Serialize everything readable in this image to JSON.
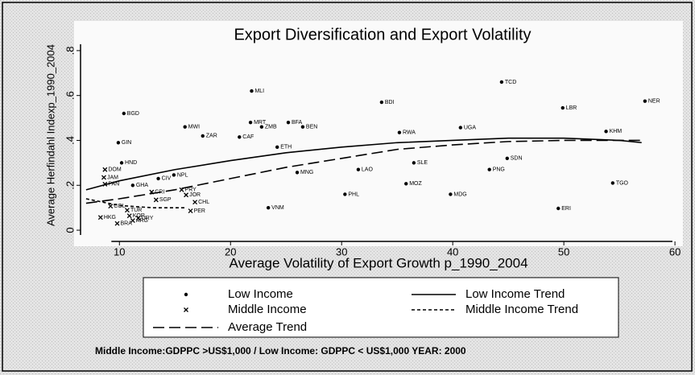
{
  "chart_data": {
    "type": "scatter",
    "title": "Export Diversification and Export Volatility",
    "x_label": "Average Volatility of Export Growth p_1990_2004",
    "y_label": "Average Herfindahl Indexp_1990_2004",
    "note": "Middle Income:GDPPC >US$1,000 / Low Income: GDPPC < US$1,000 YEAR: 2000",
    "xlim": [
      6.5,
      60.5
    ],
    "ylim": [
      -0.05,
      0.9
    ],
    "xticks": [
      10,
      20,
      30,
      40,
      50,
      60
    ],
    "yticks": [
      0,
      {
        "value": 0.2,
        "label": ".2"
      },
      {
        "value": 0.4,
        "label": ".4"
      },
      {
        "value": 0.6,
        "label": ".6"
      },
      {
        "value": 0.8,
        "label": ".8"
      }
    ],
    "series": [
      {
        "name": "Low Income",
        "color": "#000000",
        "marker": "dot",
        "labels": [
          "MLI",
          "TCD",
          "BDI",
          "NER",
          "LBR",
          "BGD",
          "MWI",
          "MRT",
          "BFA",
          "ZMB",
          "BEN",
          "ZAR",
          "CAF",
          "RWA",
          "UGA",
          "KHM",
          "GIN",
          "ETH",
          "SDN",
          "SLE",
          "PNG",
          "TGO",
          "HND",
          "LAO",
          "MNG",
          "MOZ",
          "MDG",
          "PHL",
          "VNM",
          "NPL",
          "CIV",
          "GHA",
          "ERI"
        ],
        "x": [
          21.9,
          44.4,
          33.6,
          57.3,
          49.9,
          10.4,
          15.9,
          21.8,
          25.2,
          22.8,
          26.5,
          17.5,
          20.8,
          35.2,
          40.7,
          53.8,
          9.9,
          24.2,
          44.9,
          36.5,
          43.3,
          54.4,
          10.2,
          31.5,
          26.0,
          35.8,
          39.8,
          30.3,
          23.4,
          14.9,
          13.5,
          11.2,
          49.5
        ],
        "values": [
          0.62,
          0.66,
          0.57,
          0.575,
          0.545,
          0.52,
          0.46,
          0.48,
          0.48,
          0.46,
          0.46,
          0.42,
          0.415,
          0.435,
          0.457,
          0.44,
          0.39,
          0.37,
          0.32,
          0.3,
          0.27,
          0.21,
          0.3,
          0.27,
          0.257,
          0.207,
          0.16,
          0.16,
          0.1,
          0.246,
          0.23,
          0.2,
          0.097
        ]
      },
      {
        "name": "Middle Income",
        "color": "#000000",
        "marker": "x",
        "labels": [
          "DOM",
          "JAM",
          "PAN",
          "CRI",
          "SGP",
          "PRY",
          "JOR",
          "CHL",
          "PER",
          "COL",
          "TUR",
          "KOR",
          "URY",
          "HKG",
          "BRA",
          "ARG"
        ],
        "x": [
          8.7,
          8.6,
          8.7,
          12.9,
          13.3,
          15.6,
          16.0,
          16.8,
          16.4,
          9.2,
          10.7,
          10.9,
          11.7,
          8.3,
          9.8,
          11.2
        ],
        "values": [
          0.27,
          0.235,
          0.205,
          0.17,
          0.135,
          0.18,
          0.157,
          0.125,
          0.086,
          0.107,
          0.089,
          0.064,
          0.054,
          0.057,
          0.03,
          0.043
        ]
      },
      {
        "name": "Low Income Trend",
        "color": "#000000",
        "marker": "solid",
        "x": [
          7,
          10,
          15,
          20,
          25,
          30,
          35,
          40,
          45,
          50,
          55,
          57
        ],
        "values": [
          0.18,
          0.22,
          0.27,
          0.31,
          0.345,
          0.37,
          0.39,
          0.4,
          0.41,
          0.41,
          0.4,
          0.39
        ]
      },
      {
        "name": "Middle Income Trend",
        "color": "#000000",
        "marker": "dashed",
        "x": [
          7,
          10,
          13,
          16
        ],
        "values": [
          0.14,
          0.11,
          0.1,
          0.1
        ]
      },
      {
        "name": "Average Trend",
        "color": "#000000",
        "marker": "longdash",
        "x": [
          7,
          10,
          15,
          20,
          25,
          30,
          35,
          40,
          45,
          50,
          55,
          57
        ],
        "values": [
          0.12,
          0.14,
          0.18,
          0.23,
          0.28,
          0.32,
          0.36,
          0.38,
          0.395,
          0.4,
          0.4,
          0.4
        ]
      }
    ]
  }
}
